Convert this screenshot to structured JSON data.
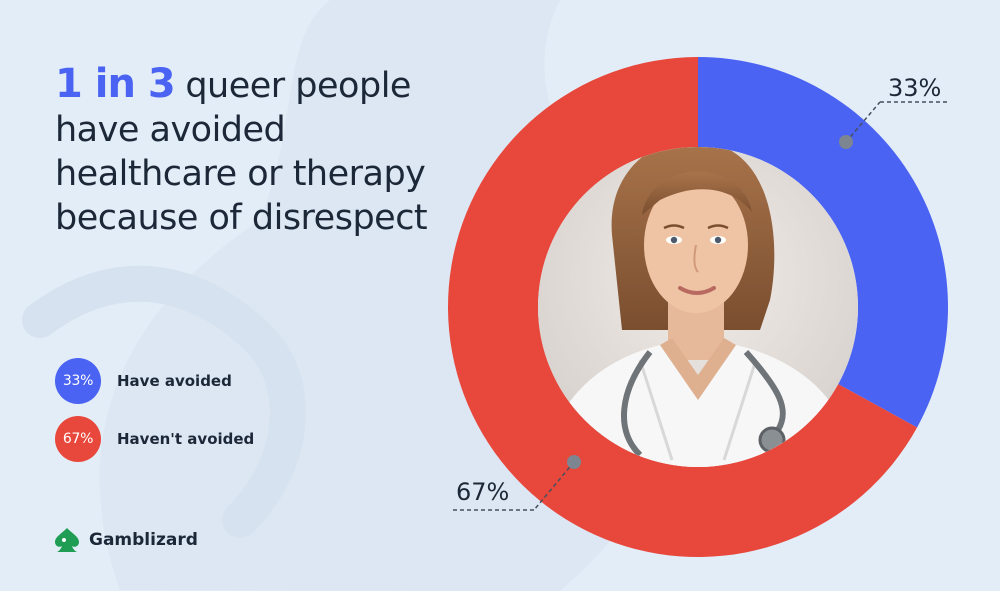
{
  "headline": {
    "highlight": "1 in 3",
    "text": " queer people have avoided healthcare or therapy because of disrespect"
  },
  "legend": [
    {
      "pct": "33%",
      "label": "Have avoided",
      "color": "#4a63f3"
    },
    {
      "pct": "67%",
      "label": "Haven't avoided",
      "color": "#e8473b"
    }
  ],
  "brand": {
    "name": "Gamblizard",
    "color": "#1f9d55"
  },
  "colors": {
    "background": "#e3edf7",
    "blue": "#4a63f3",
    "red": "#e8473b",
    "text": "#1c2738"
  },
  "chart_data": {
    "type": "pie",
    "donut": true,
    "title": "",
    "series": [
      {
        "name": "Have avoided",
        "value": 33,
        "label": "33%",
        "color": "#4a63f3"
      },
      {
        "name": "Haven't avoided",
        "value": 67,
        "label": "67%",
        "color": "#e8473b"
      }
    ],
    "center_image": "doctor-portrait",
    "start_angle": "top",
    "direction": "clockwise"
  }
}
